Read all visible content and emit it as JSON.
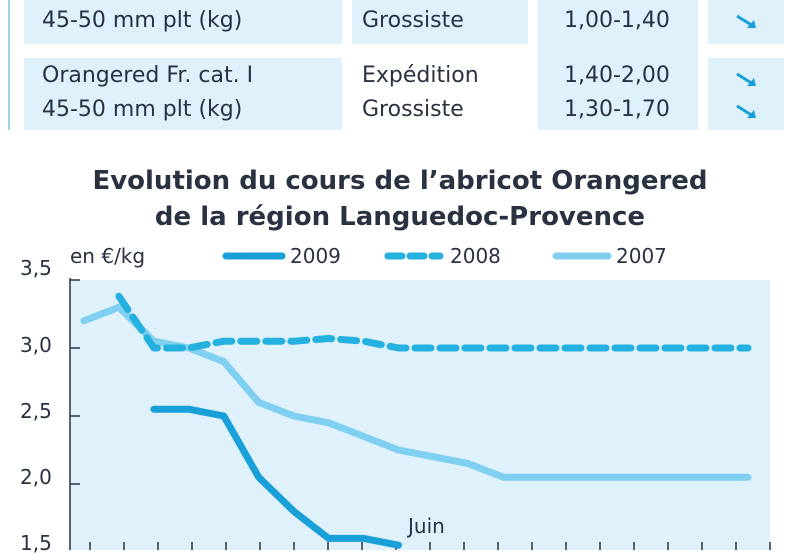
{
  "table": {
    "rows": [
      {
        "product": "45-50 mm plt (kg)",
        "stage": "Grossiste",
        "price": "1,00-1,40",
        "trend_icon": "down-right-arrow-icon"
      },
      {
        "product": "Orangered Fr. cat. I",
        "stage": "Expédition",
        "price": "1,40-2,00",
        "trend_icon": "down-right-arrow-icon"
      },
      {
        "product": "45-50 mm plt (kg)",
        "stage": "Grossiste",
        "price": "1,30-1,70",
        "trend_icon": "down-right-arrow-icon"
      }
    ]
  },
  "chart_data": {
    "type": "line",
    "title": "Evolution du cours de l’abricot Orangered",
    "subtitle": "de la région Languedoc-Provence",
    "ylabel": "en €/kg",
    "ylim": [
      1.5,
      3.5
    ],
    "yticks": [
      "3,5",
      "3,0",
      "2,5",
      "2,0",
      "1,5"
    ],
    "annotation": "Juin",
    "series": [
      {
        "name": "2009",
        "color": "#1aa0d8",
        "style": "solid",
        "points": [
          [
            3,
            2.55
          ],
          [
            4,
            2.55
          ],
          [
            5,
            2.5
          ],
          [
            6,
            2.05
          ],
          [
            7,
            1.8
          ],
          [
            8,
            1.6
          ],
          [
            9,
            1.6
          ],
          [
            10,
            1.55
          ]
        ]
      },
      {
        "name": "2008",
        "color": "#25b1e0",
        "style": "dashed",
        "points": [
          [
            2,
            3.38
          ],
          [
            3,
            3.0
          ],
          [
            4,
            3.0
          ],
          [
            5,
            3.05
          ],
          [
            6,
            3.05
          ],
          [
            7,
            3.05
          ],
          [
            8,
            3.07
          ],
          [
            9,
            3.05
          ],
          [
            10,
            3.0
          ],
          [
            11,
            3.0
          ],
          [
            12,
            3.0
          ],
          [
            13,
            3.0
          ],
          [
            14,
            3.0
          ],
          [
            15,
            3.0
          ],
          [
            16,
            3.0
          ],
          [
            17,
            3.0
          ],
          [
            18,
            3.0
          ],
          [
            19,
            3.0
          ],
          [
            20,
            3.0
          ]
        ]
      },
      {
        "name": "2007",
        "color": "#7fcff0",
        "style": "solid",
        "points": [
          [
            1,
            3.2
          ],
          [
            2,
            3.3
          ],
          [
            3,
            3.05
          ],
          [
            4,
            3.0
          ],
          [
            5,
            2.9
          ],
          [
            6,
            2.6
          ],
          [
            7,
            2.5
          ],
          [
            8,
            2.45
          ],
          [
            9,
            2.35
          ],
          [
            10,
            2.25
          ],
          [
            11,
            2.2
          ],
          [
            12,
            2.15
          ],
          [
            13,
            2.05
          ],
          [
            14,
            2.05
          ],
          [
            15,
            2.05
          ],
          [
            16,
            2.05
          ],
          [
            17,
            2.05
          ],
          [
            18,
            2.05
          ],
          [
            19,
            2.05
          ],
          [
            20,
            2.05
          ]
        ]
      }
    ]
  }
}
